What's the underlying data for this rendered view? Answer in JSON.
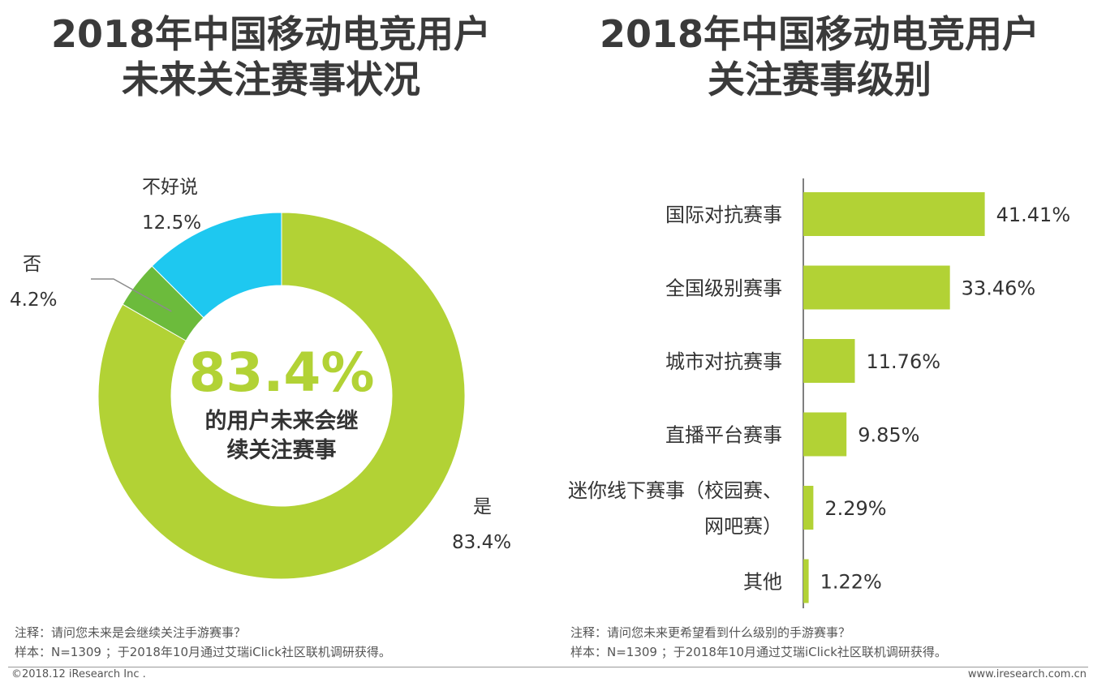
{
  "left_chart": {
    "title_line1": "2018年中国移动电竞用户",
    "title_line2": "未来关注赛事状况",
    "center_value": "83.4%",
    "center_text_line1": "的用户未来会继",
    "center_text_line2": "续关注赛事",
    "note_line1": "注释：请问您未来是会继续关注手游赛事？",
    "note_line2": "样本：N=1309 ；于2018年10月通过艾瑞iClick社区联机调研获得。"
  },
  "right_chart": {
    "title_line1": "2018年中国移动电竞用户",
    "title_line2": "关注赛事级别",
    "note_line1": "注释：请问您未来更希望看到什么级别的手游赛事？",
    "note_line2": "样本：N=1309 ；于2018年10月通过艾瑞iClick社区联机调研获得。"
  },
  "chart_data": [
    {
      "type": "pie",
      "title": "2018年中国移动电竞用户未来关注赛事状况",
      "slices": [
        {
          "label": "是",
          "value": 83.4,
          "value_label": "83.4%",
          "color": "#b2d235"
        },
        {
          "label": "否",
          "value": 4.2,
          "value_label": "4.2%",
          "color": "#6cbb3c"
        },
        {
          "label": "不好说",
          "value": 12.5,
          "value_label": "12.5%",
          "color": "#1ec8f0"
        }
      ]
    },
    {
      "type": "bar",
      "orientation": "horizontal",
      "title": "2018年中国移动电竞用户关注赛事级别",
      "categories": [
        "国际对抗赛事",
        "全国级别赛事",
        "城市对抗赛事",
        "直播平台赛事",
        "迷你线下赛事（校园赛、网吧赛）",
        "其他"
      ],
      "category_lines": [
        [
          "国际对抗赛事"
        ],
        [
          "全国级别赛事"
        ],
        [
          "城市对抗赛事"
        ],
        [
          "直播平台赛事"
        ],
        [
          "迷你线下赛事（校园赛、",
          "网吧赛）"
        ],
        [
          "其他"
        ]
      ],
      "values": [
        41.41,
        33.46,
        11.76,
        9.85,
        2.29,
        1.22
      ],
      "value_labels": [
        "41.41%",
        "33.46%",
        "11.76%",
        "9.85%",
        "2.29%",
        "1.22%"
      ],
      "color": "#b2d235"
    }
  ],
  "footer": {
    "copyright": "©2018.12 iResearch Inc .",
    "website": "www.iresearch.com.cn"
  },
  "colors": {
    "accent_green": "#b2d235",
    "dark_green": "#6cbb3c",
    "cyan": "#1ec8f0",
    "title": "#3a3a3a"
  }
}
